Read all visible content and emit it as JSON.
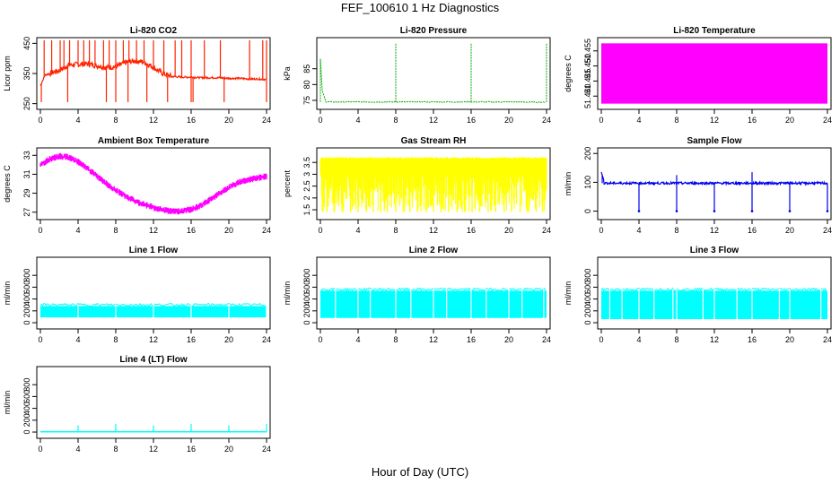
{
  "figure": {
    "title": "FEF_100610  1 Hz Diagnostics",
    "xlabel": "Hour of Day (UTC)"
  },
  "colors": {
    "co2": "#ff2200",
    "pressure": "#00aa00",
    "licor_temp": "#ff00ff",
    "ambient_temp": "#ff00ff",
    "rh": "#ffff00",
    "sample_flow": "#0000ee",
    "line_flow": "#00ffff"
  },
  "chart_data": [
    {
      "type": "line",
      "title": "Li-820 CO2",
      "ylabel": "Licor ppm",
      "color": "co2",
      "xlim": [
        0,
        24
      ],
      "ylim": [
        240,
        460
      ],
      "xticks": [
        0,
        4,
        8,
        12,
        16,
        20,
        24
      ],
      "yticks": [
        250,
        350,
        450
      ],
      "x": [
        0,
        0.5,
        1,
        2,
        3,
        4,
        5,
        6,
        7,
        8,
        9,
        10,
        11,
        12,
        13,
        14,
        15,
        16,
        17,
        18,
        19,
        20,
        21,
        22,
        23,
        24
      ],
      "y": [
        310,
        345,
        350,
        360,
        378,
        380,
        382,
        376,
        370,
        372,
        386,
        392,
        388,
        370,
        350,
        340,
        338,
        338,
        336,
        336,
        336,
        334,
        334,
        332,
        332,
        330
      ],
      "spikes_up": [
        0.4,
        1.2,
        2.1,
        2.5,
        3.1,
        4.0,
        4.6,
        5.2,
        5.8,
        6.7,
        7.3,
        8.0,
        8.8,
        9.4,
        10.2,
        11.0,
        12.0,
        13.1,
        14.3,
        15.0,
        16.0,
        17.4,
        19.1,
        22.2,
        23.6,
        24.0
      ],
      "spikes_down": [
        0.1,
        2.9,
        7.0,
        8.0,
        9.3,
        11.3,
        13.5,
        16.0,
        16.2,
        19.5,
        24.0
      ]
    },
    {
      "type": "line",
      "title": "Li-820 Pressure",
      "ylabel": "kPa",
      "color": "pressure",
      "xlim": [
        0,
        24
      ],
      "ylim": [
        73,
        94
      ],
      "xticks": [
        0,
        4,
        8,
        12,
        16,
        20,
        24
      ],
      "yticks": [
        75,
        80,
        85
      ],
      "x": [
        0,
        0.2,
        0.6,
        4,
        8,
        12,
        16,
        20,
        24
      ],
      "y": [
        88,
        78,
        74.5,
        74.5,
        74.5,
        74.5,
        74.5,
        74.5,
        74.4
      ],
      "spikes_up": [
        0,
        8,
        16,
        24
      ]
    },
    {
      "type": "area",
      "title": "Li-820 Temperature",
      "ylabel": "degrees C",
      "color": "licor_temp",
      "xlim": [
        0,
        24
      ],
      "ylim": [
        51.4365,
        51.4585
      ],
      "xticks": [
        0,
        4,
        8,
        12,
        16,
        20,
        24
      ],
      "yticks": [
        51.44,
        51.445,
        51.45,
        51.455
      ],
      "ytick_labels": [
        "51.440",
        "51.445",
        "51.450",
        "51.455"
      ],
      "band": [
        51.4375,
        51.4575
      ]
    },
    {
      "type": "line",
      "title": "Ambient Box Temperature",
      "ylabel": "degrees C",
      "color": "ambient_temp",
      "xlim": [
        0,
        24
      ],
      "ylim": [
        26.5,
        33.5
      ],
      "xticks": [
        0,
        4,
        8,
        12,
        16,
        20,
        24
      ],
      "yticks": [
        27,
        29,
        31,
        33
      ],
      "x": [
        0,
        1,
        2,
        3,
        4,
        5,
        6,
        7,
        8,
        9,
        10,
        11,
        12,
        13,
        14,
        15,
        16,
        17,
        18,
        19,
        20,
        21,
        22,
        23,
        24
      ],
      "y": [
        32.0,
        32.6,
        32.9,
        32.8,
        32.3,
        31.6,
        30.8,
        30.0,
        29.3,
        28.7,
        28.2,
        27.8,
        27.5,
        27.2,
        27.1,
        27.1,
        27.3,
        27.7,
        28.3,
        29.0,
        29.6,
        30.1,
        30.4,
        30.6,
        30.8
      ],
      "noise": 0.35
    },
    {
      "type": "line",
      "title": "Gas Stream RH",
      "ylabel": "percent",
      "color": "rh",
      "xlim": [
        0,
        24
      ],
      "ylim": [
        1.2,
        4.0
      ],
      "xticks": [
        0,
        4,
        8,
        12,
        16,
        20,
        24
      ],
      "yticks": [
        1.5,
        2.0,
        2.5,
        3.0,
        3.5
      ],
      "upper": 3.65,
      "lower": 1.4,
      "dips": [
        0.7,
        1.5,
        2.3,
        3.2,
        4.0,
        4.9,
        5.6,
        6.4,
        7.1,
        8.0,
        8.8,
        9.5,
        10.3,
        11.2,
        12.0,
        12.8,
        13.6,
        14.5,
        15.3,
        16.1,
        16.9,
        17.8,
        18.6,
        19.5,
        20.3,
        21.2,
        22.0,
        22.9,
        23.6
      ]
    },
    {
      "type": "line",
      "title": "Sample Flow",
      "ylabel": "ml/min",
      "color": "sample_flow",
      "xlim": [
        0,
        24
      ],
      "ylim": [
        -20,
        210
      ],
      "xticks": [
        0,
        4,
        8,
        12,
        16,
        20,
        24
      ],
      "yticks": [
        0,
        100,
        200
      ],
      "baseline": 97,
      "start_peak": 135,
      "dips": [
        4,
        8,
        12,
        16,
        20,
        24
      ],
      "spikes_up": [
        0.1,
        8,
        16
      ]
    },
    {
      "type": "area",
      "title": "Line 1 Flow",
      "ylabel": "ml/min",
      "color": "line_flow",
      "xlim": [
        0,
        24
      ],
      "ylim": [
        -60,
        1060
      ],
      "xticks": [
        0,
        4,
        8,
        12,
        16,
        20,
        24
      ],
      "yticks": [
        0,
        200,
        400,
        600,
        800
      ],
      "band": [
        90,
        280
      ],
      "gaps": [
        4,
        8,
        12,
        16,
        20,
        24
      ]
    },
    {
      "type": "area",
      "title": "Line 2 Flow",
      "ylabel": "ml/min",
      "color": "line_flow",
      "xlim": [
        0,
        24
      ],
      "ylim": [
        -60,
        1060
      ],
      "xticks": [
        0,
        4,
        8,
        12,
        16,
        20,
        24
      ],
      "yticks": [
        0,
        200,
        400,
        600,
        800
      ],
      "band": [
        80,
        540
      ],
      "gaps": [
        1.6,
        4,
        5.3,
        8,
        9.6,
        12,
        13.4,
        16,
        17.6,
        20,
        21.4,
        23.7
      ]
    },
    {
      "type": "area",
      "title": "Line 3 Flow",
      "ylabel": "ml/min",
      "color": "line_flow",
      "xlim": [
        0,
        24
      ],
      "ylim": [
        -60,
        1060
      ],
      "xticks": [
        0,
        4,
        8,
        12,
        16,
        20,
        24
      ],
      "yticks": [
        0,
        200,
        400,
        600,
        800
      ],
      "band": [
        60,
        540
      ],
      "gaps": [
        0.9,
        2.2,
        4,
        5.6,
        7.6,
        8,
        10.8,
        12,
        14.4,
        16,
        18.9,
        20,
        23.3
      ]
    },
    {
      "type": "line",
      "title": "Line 4 (LT) Flow",
      "ylabel": "ml/min",
      "color": "line_flow",
      "xlim": [
        0,
        24
      ],
      "ylim": [
        -60,
        1060
      ],
      "xticks": [
        0,
        4,
        8,
        12,
        16,
        20,
        24
      ],
      "yticks": [
        0,
        200,
        400,
        600,
        800
      ],
      "baseline": 5,
      "spikes_up": [
        4,
        8,
        12,
        16,
        20,
        24
      ],
      "spike_height": 140
    }
  ]
}
